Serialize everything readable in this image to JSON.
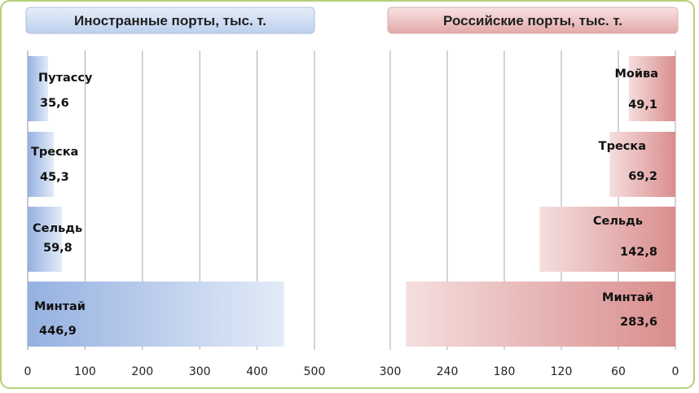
{
  "chart_data": [
    {
      "type": "bar",
      "orientation": "horizontal",
      "title": "Иностранные порты, тыс. т.",
      "categories": [
        "Путассу",
        "Треска",
        "Сельдь",
        "Минтай"
      ],
      "values": [
        35.6,
        45.3,
        59.8,
        446.9
      ],
      "value_labels": [
        "35,6",
        "45,3",
        "59,8",
        "446,9"
      ],
      "xlim": [
        0,
        500
      ],
      "xticks": [
        "0",
        "100",
        "200",
        "300",
        "400",
        "500"
      ],
      "grid": true,
      "color": "#8eaadb"
    },
    {
      "type": "bar",
      "orientation": "horizontal",
      "reversed": true,
      "title": "Российские порты, тыс. т.",
      "categories": [
        "Мойва",
        "Треска",
        "Сельдь",
        "Минтай"
      ],
      "values": [
        49.1,
        69.2,
        142.8,
        283.6
      ],
      "value_labels": [
        "49,1",
        "69,2",
        "142,8",
        "283,6"
      ],
      "xlim": [
        0,
        300
      ],
      "xticks": [
        "300",
        "240",
        "180",
        "120",
        "60",
        "0"
      ],
      "grid": true,
      "color": "#d98a8a"
    }
  ]
}
